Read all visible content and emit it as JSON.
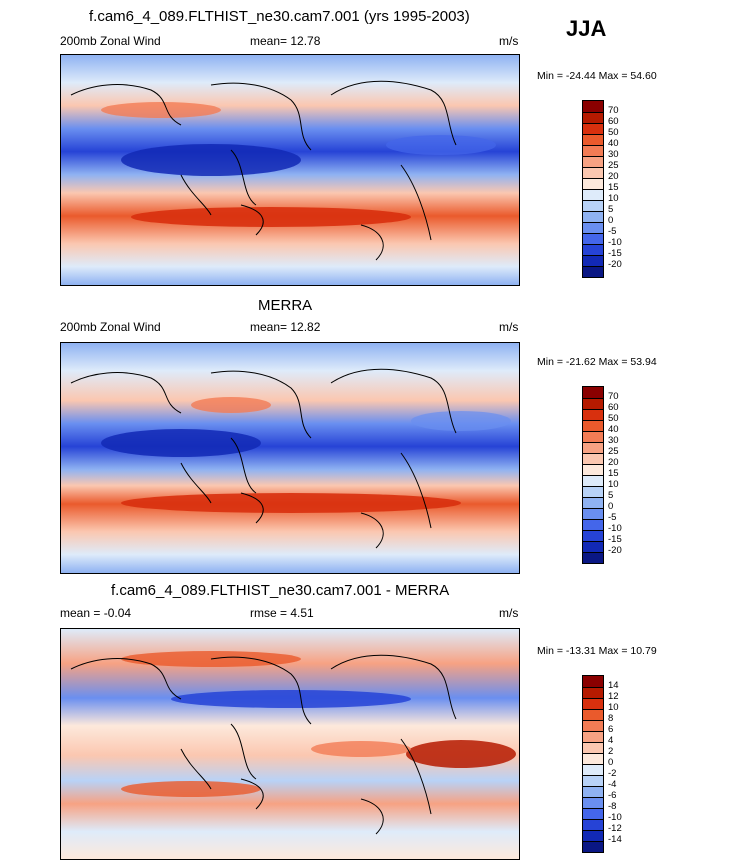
{
  "season": "JJA",
  "panels": [
    {
      "title": "f.cam6_4_089.FLTHIST_ne30.cam7.001 (yrs 1995-2003)",
      "left_label": "200mb Zonal Wind",
      "center_label": "mean=  12.78",
      "units": "m/s",
      "minmax": "Min = -24.44 Max =  54.60",
      "levels": [
        "70",
        "60",
        "50",
        "40",
        "30",
        "25",
        "20",
        "15",
        "10",
        "5",
        "0",
        "-5",
        "-10",
        "-15",
        "-20"
      ],
      "colors": [
        "#8a0000",
        "#b51a00",
        "#d8300e",
        "#ea5a2c",
        "#f27c55",
        "#f7a283",
        "#fbc7b0",
        "#fde9dc",
        "#deebfa",
        "#b8d2f7",
        "#8fb2f2",
        "#6a8ff0",
        "#4466ea",
        "#2643d6",
        "#1229b5",
        "#0a1784"
      ]
    },
    {
      "title": "MERRA",
      "left_label": "200mb Zonal Wind",
      "center_label": "mean=  12.82",
      "units": "m/s",
      "minmax": "Min = -21.62 Max =  53.94",
      "levels": [
        "70",
        "60",
        "50",
        "40",
        "30",
        "25",
        "20",
        "15",
        "10",
        "5",
        "0",
        "-5",
        "-10",
        "-15",
        "-20"
      ],
      "colors": [
        "#8a0000",
        "#b51a00",
        "#d8300e",
        "#ea5a2c",
        "#f27c55",
        "#f7a283",
        "#fbc7b0",
        "#fde9dc",
        "#deebfa",
        "#b8d2f7",
        "#8fb2f2",
        "#6a8ff0",
        "#4466ea",
        "#2643d6",
        "#1229b5",
        "#0a1784"
      ]
    },
    {
      "title": "f.cam6_4_089.FLTHIST_ne30.cam7.001 - MERRA",
      "left_label": "mean =  -0.04",
      "center_label": "rmse =   4.51",
      "units": "m/s",
      "minmax": "Min = -13.31 Max =  10.79",
      "levels": [
        "14",
        "12",
        "10",
        "8",
        "6",
        "4",
        "2",
        "0",
        "-2",
        "-4",
        "-6",
        "-8",
        "-10",
        "-12",
        "-14"
      ],
      "colors": [
        "#8a0000",
        "#b51a00",
        "#d8300e",
        "#ea5a2c",
        "#f27c55",
        "#f7a283",
        "#fbc7b0",
        "#fde9dc",
        "#deebfa",
        "#b8d2f7",
        "#8fb2f2",
        "#6a8ff0",
        "#4466ea",
        "#2643d6",
        "#1229b5",
        "#0a1784"
      ]
    }
  ]
}
